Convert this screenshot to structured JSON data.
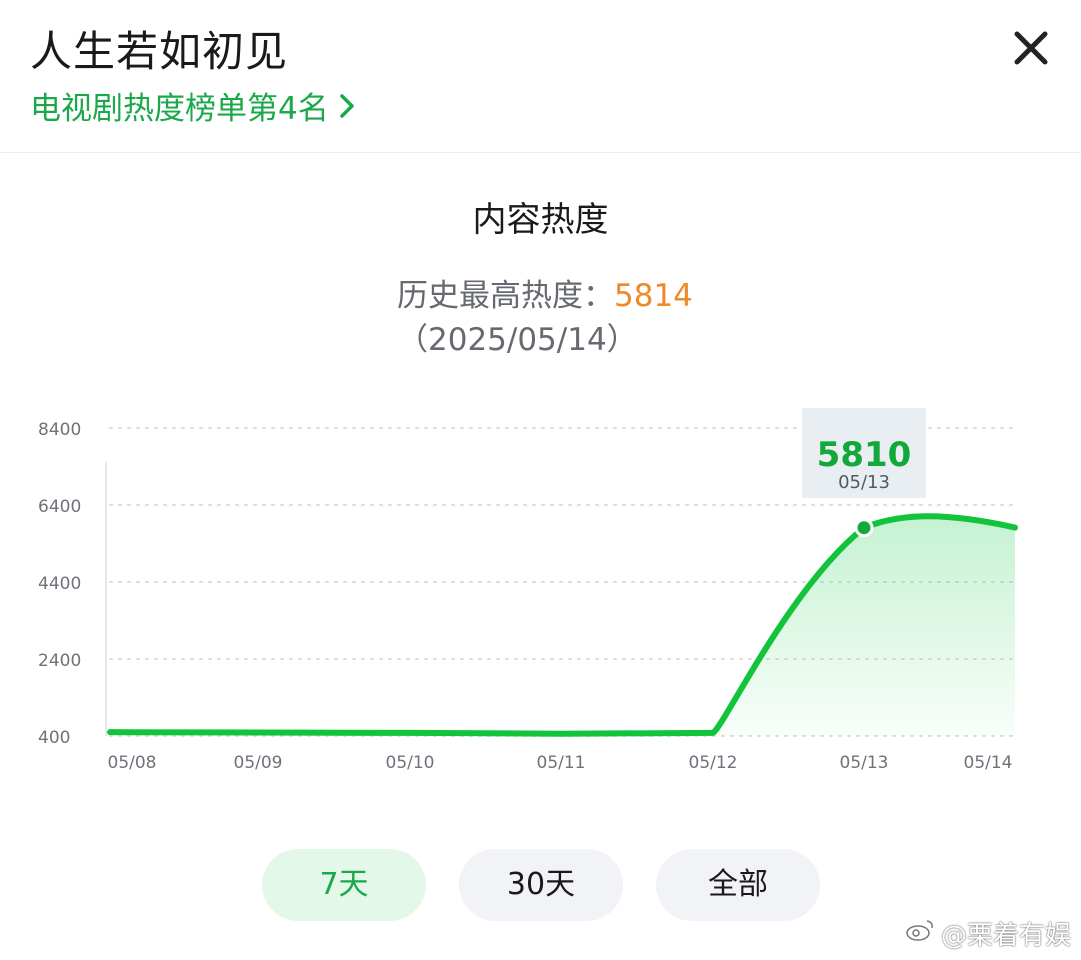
{
  "header": {
    "title": "人生若如初见",
    "rank_text": "电视剧热度榜单第4名"
  },
  "section_title": "内容热度",
  "peak": {
    "label": "历史最高热度：",
    "value": "5814",
    "date": "（2025/05/14）"
  },
  "colors": {
    "accent_green": "#1aa84a",
    "line_green": "#12c33c",
    "peak_orange": "#ef8a2a"
  },
  "chart_data": {
    "type": "area",
    "x": [
      "05/08",
      "05/09",
      "05/10",
      "05/11",
      "05/12",
      "05/13",
      "05/14"
    ],
    "values": [
      500,
      490,
      480,
      460,
      480,
      5810,
      5814
    ],
    "ylim": [
      400,
      8400
    ],
    "yticks": [
      400,
      2400,
      4400,
      6400,
      8400
    ],
    "ytick_labels": [
      "400",
      "2400",
      "4400",
      "6400",
      "8400"
    ],
    "grid": true,
    "tooltip": {
      "value": "5810",
      "date": "05/13"
    }
  },
  "range_buttons": [
    {
      "label": "7天",
      "active": true
    },
    {
      "label": "30天",
      "active": false
    },
    {
      "label": "全部",
      "active": false
    }
  ],
  "watermark": "@栗着有娱"
}
